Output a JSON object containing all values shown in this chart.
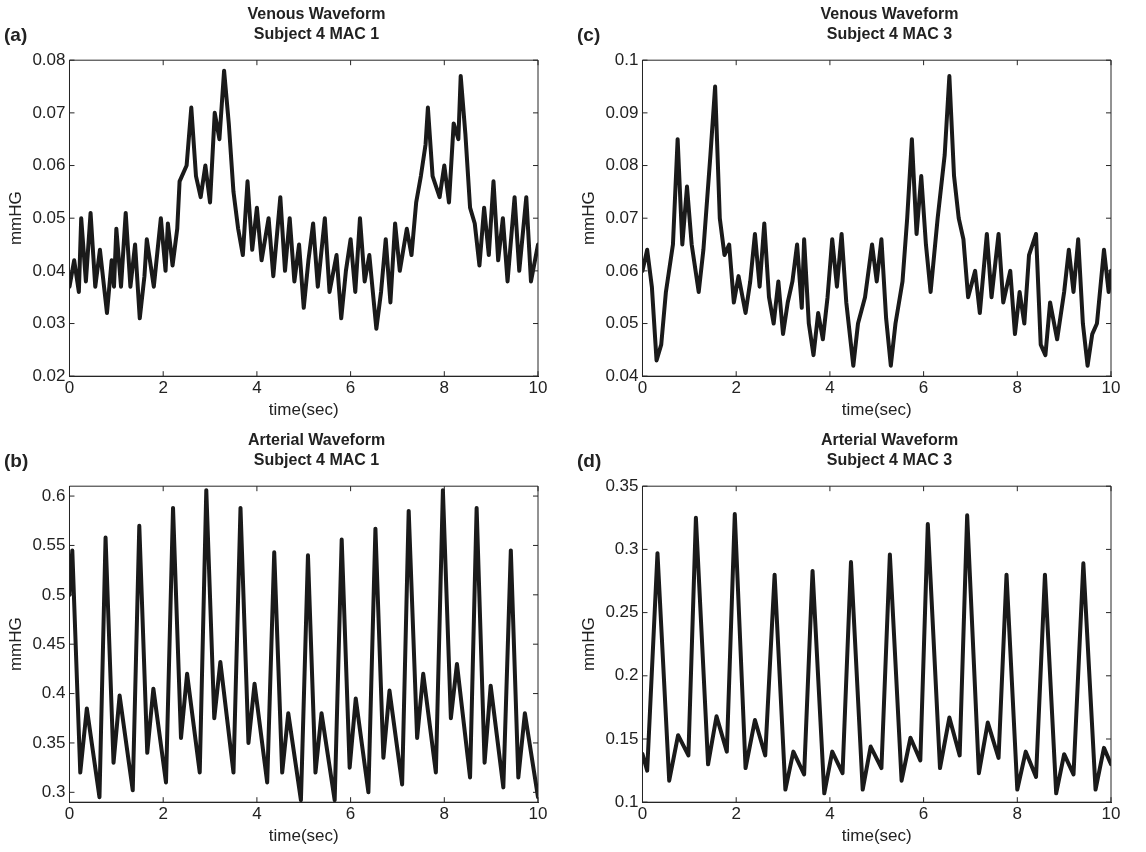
{
  "chart_data": [
    {
      "type": "line",
      "title": "Venous Waveform",
      "subtitle": "Subject 4 MAC 1",
      "xlabel": "time(sec)",
      "ylabel": "mmHG",
      "annotations": [
        "(a)"
      ],
      "color": "#1a1a1a",
      "x": [
        0,
        0.1,
        0.2,
        0.25,
        0.35,
        0.45,
        0.55,
        0.65,
        0.8,
        0.9,
        0.95,
        1.0,
        1.1,
        1.2,
        1.3,
        1.4,
        1.5,
        1.6,
        1.65,
        1.8,
        1.95,
        2.05,
        2.1,
        2.2,
        2.3,
        2.35,
        2.5,
        2.6,
        2.7,
        2.8,
        2.9,
        3.0,
        3.1,
        3.2,
        3.3,
        3.4,
        3.5,
        3.6,
        3.7,
        3.8,
        3.9,
        4.0,
        4.1,
        4.25,
        4.35,
        4.5,
        4.6,
        4.7,
        4.8,
        4.9,
        5.0,
        5.1,
        5.2,
        5.3,
        5.45,
        5.55,
        5.7,
        5.8,
        5.9,
        6.0,
        6.1,
        6.2,
        6.3,
        6.4,
        6.55,
        6.65,
        6.75,
        6.85,
        6.95,
        7.05,
        7.2,
        7.3,
        7.4,
        7.5,
        7.6,
        7.65,
        7.75,
        7.9,
        8.0,
        8.1,
        8.2,
        8.3,
        8.35,
        8.45,
        8.55,
        8.65,
        8.75,
        8.85,
        8.95,
        9.05,
        9.15,
        9.25,
        9.35,
        9.5,
        9.6,
        9.75,
        9.85,
        10
      ],
      "values": [
        0.037,
        0.042,
        0.036,
        0.05,
        0.038,
        0.051,
        0.037,
        0.044,
        0.032,
        0.042,
        0.037,
        0.048,
        0.037,
        0.051,
        0.037,
        0.045,
        0.031,
        0.039,
        0.046,
        0.037,
        0.05,
        0.04,
        0.049,
        0.041,
        0.048,
        0.057,
        0.06,
        0.071,
        0.058,
        0.054,
        0.06,
        0.053,
        0.07,
        0.065,
        0.078,
        0.068,
        0.055,
        0.048,
        0.043,
        0.057,
        0.044,
        0.052,
        0.042,
        0.05,
        0.039,
        0.054,
        0.04,
        0.05,
        0.038,
        0.045,
        0.033,
        0.042,
        0.049,
        0.037,
        0.05,
        0.036,
        0.043,
        0.031,
        0.04,
        0.046,
        0.036,
        0.05,
        0.038,
        0.043,
        0.029,
        0.036,
        0.046,
        0.034,
        0.049,
        0.04,
        0.048,
        0.043,
        0.053,
        0.058,
        0.064,
        0.071,
        0.058,
        0.054,
        0.06,
        0.053,
        0.068,
        0.065,
        0.077,
        0.066,
        0.052,
        0.049,
        0.041,
        0.052,
        0.043,
        0.057,
        0.042,
        0.05,
        0.038,
        0.054,
        0.04,
        0.054,
        0.038,
        0.045
      ],
      "xlim": [
        0,
        10
      ],
      "xticks": [
        0,
        2,
        4,
        6,
        8,
        10
      ],
      "ylim": [
        0.02,
        0.08
      ],
      "yticks": [
        0.02,
        0.03,
        0.04,
        0.05,
        0.06,
        0.07,
        0.08
      ]
    },
    {
      "type": "line",
      "title": "Venous Waveform",
      "subtitle": "Subject 4 MAC 3",
      "xlabel": "time(sec)",
      "ylabel": "mmHG",
      "annotations": [
        "(c)"
      ],
      "color": "#1a1a1a",
      "x": [
        0,
        0.1,
        0.2,
        0.3,
        0.4,
        0.5,
        0.65,
        0.75,
        0.85,
        0.95,
        1.05,
        1.2,
        1.3,
        1.45,
        1.55,
        1.65,
        1.75,
        1.85,
        1.95,
        2.05,
        2.2,
        2.3,
        2.4,
        2.5,
        2.6,
        2.7,
        2.8,
        2.9,
        3.0,
        3.1,
        3.2,
        3.3,
        3.4,
        3.45,
        3.55,
        3.65,
        3.75,
        3.85,
        3.95,
        4.05,
        4.15,
        4.25,
        4.35,
        4.5,
        4.6,
        4.75,
        4.9,
        5.0,
        5.1,
        5.2,
        5.3,
        5.4,
        5.55,
        5.65,
        5.75,
        5.85,
        5.95,
        6.05,
        6.15,
        6.3,
        6.45,
        6.55,
        6.65,
        6.75,
        6.85,
        6.95,
        7.1,
        7.2,
        7.35,
        7.45,
        7.6,
        7.7,
        7.85,
        7.95,
        8.05,
        8.15,
        8.25,
        8.4,
        8.5,
        8.6,
        8.7,
        8.85,
        9.0,
        9.1,
        9.2,
        9.3,
        9.4,
        9.5,
        9.6,
        9.7,
        9.85,
        9.95,
        10
      ],
      "values": [
        0.06,
        0.064,
        0.057,
        0.043,
        0.046,
        0.056,
        0.065,
        0.085,
        0.065,
        0.076,
        0.065,
        0.056,
        0.064,
        0.082,
        0.095,
        0.07,
        0.063,
        0.065,
        0.054,
        0.059,
        0.052,
        0.058,
        0.067,
        0.057,
        0.069,
        0.055,
        0.05,
        0.058,
        0.048,
        0.054,
        0.058,
        0.065,
        0.053,
        0.066,
        0.05,
        0.044,
        0.052,
        0.047,
        0.055,
        0.066,
        0.057,
        0.067,
        0.054,
        0.042,
        0.05,
        0.055,
        0.065,
        0.058,
        0.066,
        0.051,
        0.042,
        0.05,
        0.058,
        0.07,
        0.085,
        0.067,
        0.078,
        0.065,
        0.056,
        0.07,
        0.082,
        0.097,
        0.078,
        0.07,
        0.066,
        0.055,
        0.06,
        0.052,
        0.067,
        0.055,
        0.067,
        0.054,
        0.06,
        0.048,
        0.056,
        0.05,
        0.063,
        0.067,
        0.046,
        0.044,
        0.054,
        0.047,
        0.056,
        0.064,
        0.056,
        0.066,
        0.05,
        0.042,
        0.048,
        0.05,
        0.064,
        0.056,
        0.06
      ],
      "xlim": [
        0,
        10
      ],
      "xticks": [
        0,
        2,
        4,
        6,
        8,
        10
      ],
      "ylim": [
        0.04,
        0.1
      ],
      "yticks": [
        0.04,
        0.05,
        0.06,
        0.07,
        0.08,
        0.09,
        0.1
      ]
    },
    {
      "type": "line",
      "title": "Arterial Waveform",
      "subtitle": "Subject 4 MAC 1",
      "xlabel": "time(sec)",
      "ylabel": "mmHG",
      "annotations": [
        "(b)"
      ],
      "color": "#1a1a1a",
      "x": [
        0,
        0.06,
        0.23,
        0.37,
        0.64,
        0.77,
        0.94,
        1.07,
        1.35,
        1.49,
        1.66,
        1.79,
        2.06,
        2.21,
        2.38,
        2.51,
        2.78,
        2.92,
        3.09,
        3.22,
        3.5,
        3.65,
        3.82,
        3.95,
        4.22,
        4.37,
        4.54,
        4.67,
        4.94,
        5.09,
        5.25,
        5.38,
        5.66,
        5.81,
        5.98,
        6.11,
        6.38,
        6.53,
        6.7,
        6.83,
        7.1,
        7.24,
        7.42,
        7.55,
        7.82,
        7.97,
        8.14,
        8.27,
        8.55,
        8.69,
        8.86,
        8.99,
        9.26,
        9.42,
        9.58,
        9.72,
        10
      ],
      "values": [
        0.5,
        0.545,
        0.32,
        0.385,
        0.295,
        0.558,
        0.33,
        0.398,
        0.302,
        0.57,
        0.34,
        0.405,
        0.31,
        0.588,
        0.355,
        0.42,
        0.32,
        0.606,
        0.375,
        0.432,
        0.32,
        0.588,
        0.35,
        0.41,
        0.31,
        0.543,
        0.32,
        0.38,
        0.292,
        0.54,
        0.32,
        0.38,
        0.292,
        0.556,
        0.325,
        0.395,
        0.3,
        0.567,
        0.335,
        0.403,
        0.308,
        0.585,
        0.355,
        0.42,
        0.32,
        0.606,
        0.375,
        0.43,
        0.315,
        0.588,
        0.33,
        0.408,
        0.305,
        0.545,
        0.315,
        0.38,
        0.295
      ],
      "xlim": [
        0,
        10
      ],
      "xticks": [
        0,
        2,
        4,
        6,
        8,
        10
      ],
      "ylim": [
        0.29,
        0.61
      ],
      "yticks": [
        0.3,
        0.35,
        0.4,
        0.45,
        0.5,
        0.55,
        0.6
      ]
    },
    {
      "type": "line",
      "title": "Arterial Waveform",
      "subtitle": "Subject 4 MAC 3",
      "xlabel": "time(sec)",
      "ylabel": "mmHG",
      "annotations": [
        "(d)"
      ],
      "color": "#1a1a1a",
      "x": [
        0,
        0.1,
        0.32,
        0.57,
        0.76,
        0.98,
        1.14,
        1.4,
        1.58,
        1.8,
        1.97,
        2.2,
        2.4,
        2.62,
        2.82,
        3.05,
        3.22,
        3.45,
        3.63,
        3.88,
        4.05,
        4.27,
        4.45,
        4.7,
        4.87,
        5.1,
        5.28,
        5.53,
        5.72,
        5.93,
        6.09,
        6.35,
        6.55,
        6.77,
        6.93,
        7.18,
        7.37,
        7.6,
        7.77,
        8.0,
        8.18,
        8.4,
        8.59,
        8.83,
        9.0,
        9.2,
        9.41,
        9.67,
        9.85,
        10
      ],
      "values": [
        0.138,
        0.125,
        0.297,
        0.117,
        0.153,
        0.137,
        0.325,
        0.13,
        0.168,
        0.14,
        0.328,
        0.127,
        0.165,
        0.137,
        0.28,
        0.11,
        0.14,
        0.122,
        0.283,
        0.107,
        0.14,
        0.123,
        0.29,
        0.11,
        0.144,
        0.127,
        0.296,
        0.117,
        0.151,
        0.133,
        0.32,
        0.127,
        0.167,
        0.137,
        0.327,
        0.123,
        0.163,
        0.135,
        0.28,
        0.11,
        0.14,
        0.12,
        0.28,
        0.107,
        0.138,
        0.122,
        0.289,
        0.11,
        0.143,
        0.13
      ],
      "xlim": [
        0,
        10
      ],
      "xticks": [
        0,
        2,
        4,
        6,
        8,
        10
      ],
      "ylim": [
        0.1,
        0.35
      ],
      "yticks": [
        0.1,
        0.15,
        0.2,
        0.25,
        0.3,
        0.35
      ]
    }
  ]
}
